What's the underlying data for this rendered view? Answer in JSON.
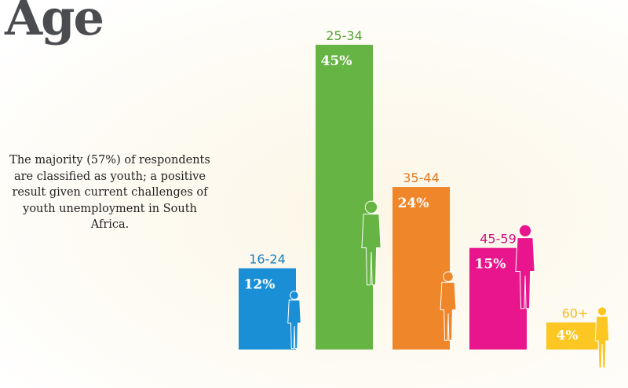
{
  "title": "Age",
  "note": "The majority (57%) of respondents are classified as youth; a positive result given current challenges of youth unemployment in South Africa.",
  "chart_data": {
    "type": "bar",
    "categories": [
      "16-24",
      "25-34",
      "35-44",
      "45-59",
      "60+"
    ],
    "values": [
      12,
      45,
      24,
      15,
      4
    ],
    "value_labels": [
      "12%",
      "45%",
      "24%",
      "15%",
      "4%"
    ],
    "colors": [
      "#1a8fd6",
      "#66b444",
      "#f0862a",
      "#e8158c",
      "#fcc623"
    ],
    "label_colors": [
      "#1a7fbf",
      "#55a236",
      "#e07820",
      "#d01380",
      "#f2bb20"
    ],
    "icons": [
      "young-woman-silhouette-icon",
      "man-silhouette-icon",
      "woman-with-tablet-silhouette-icon",
      "woman-with-bag-silhouette-icon",
      "elderly-man-with-cane-silhouette-icon"
    ],
    "ylim": [
      0,
      45
    ],
    "grid": false,
    "title": "Age"
  }
}
